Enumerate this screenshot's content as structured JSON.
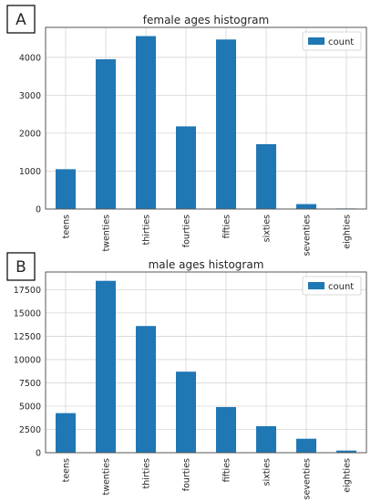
{
  "chart_data": [
    {
      "panel_label": "A",
      "type": "bar",
      "title": "female ages histogram",
      "categories": [
        "teens",
        "twenties",
        "thirties",
        "fourties",
        "fifties",
        "sixties",
        "seventies",
        "eighties"
      ],
      "series": [
        {
          "name": "count",
          "values": [
            1050,
            3950,
            4560,
            2180,
            4470,
            1710,
            130,
            15
          ]
        }
      ],
      "yticks": [
        0,
        1000,
        2000,
        3000,
        4000
      ],
      "ytick_labels": [
        "0",
        "1000",
        "2000",
        "3000",
        "4000"
      ],
      "ylim": [
        0,
        4790
      ],
      "grid": true,
      "legend": "top-right"
    },
    {
      "panel_label": "B",
      "type": "bar",
      "title": "male ages histogram",
      "categories": [
        "teens",
        "twenties",
        "thirties",
        "fourties",
        "fifties",
        "sixties",
        "seventies",
        "eighties"
      ],
      "series": [
        {
          "name": "count",
          "values": [
            4250,
            18450,
            13600,
            8700,
            4900,
            2850,
            1500,
            230
          ]
        }
      ],
      "yticks": [
        0,
        2500,
        5000,
        7500,
        10000,
        12500,
        15000,
        17500
      ],
      "ytick_labels": [
        "0",
        "2500",
        "5000",
        "7500",
        "10000",
        "12500",
        "15000",
        "17500"
      ],
      "ylim": [
        0,
        19400
      ],
      "grid": true,
      "legend": "top-right"
    }
  ],
  "colors": {
    "bar": "#1f77b4",
    "grid": "#d6d6d6",
    "frame": "#555555"
  }
}
